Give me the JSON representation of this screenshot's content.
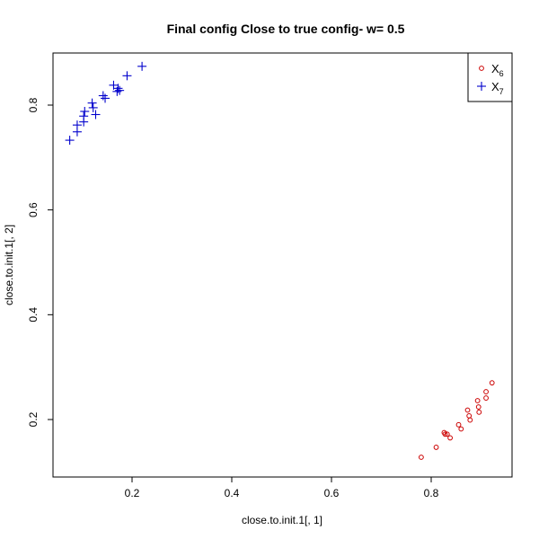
{
  "chart_data": {
    "type": "scatter",
    "title": "Final config Close to true config- w= 0.5",
    "xlabel": "close.to.init.1[, 1]",
    "ylabel": "close.to.init.1[, 2]",
    "xlim": [
      0.05,
      0.95
    ],
    "ylim": [
      0.1,
      0.9
    ],
    "xticks": [
      0.2,
      0.4,
      0.6,
      0.8
    ],
    "yticks": [
      0.2,
      0.4,
      0.6,
      0.8
    ],
    "grid": false,
    "legend_position": "top-right",
    "series": [
      {
        "name": "X",
        "subscript": "6",
        "marker": "circle",
        "color": "#cc0000",
        "points": [
          [
            0.78,
            0.128
          ],
          [
            0.81,
            0.147
          ],
          [
            0.826,
            0.175
          ],
          [
            0.828,
            0.172
          ],
          [
            0.832,
            0.172
          ],
          [
            0.838,
            0.165
          ],
          [
            0.855,
            0.19
          ],
          [
            0.86,
            0.182
          ],
          [
            0.873,
            0.218
          ],
          [
            0.876,
            0.207
          ],
          [
            0.878,
            0.199
          ],
          [
            0.893,
            0.236
          ],
          [
            0.895,
            0.224
          ],
          [
            0.896,
            0.214
          ],
          [
            0.91,
            0.253
          ],
          [
            0.91,
            0.241
          ],
          [
            0.922,
            0.27
          ]
        ]
      },
      {
        "name": "X",
        "subscript": "7",
        "marker": "plus",
        "color": "#0000cc",
        "points": [
          [
            0.075,
            0.733
          ],
          [
            0.09,
            0.749
          ],
          [
            0.09,
            0.762
          ],
          [
            0.103,
            0.768
          ],
          [
            0.103,
            0.779
          ],
          [
            0.105,
            0.788
          ],
          [
            0.12,
            0.804
          ],
          [
            0.122,
            0.795
          ],
          [
            0.127,
            0.782
          ],
          [
            0.142,
            0.818
          ],
          [
            0.146,
            0.813
          ],
          [
            0.163,
            0.838
          ],
          [
            0.17,
            0.826
          ],
          [
            0.172,
            0.832
          ],
          [
            0.175,
            0.828
          ],
          [
            0.19,
            0.856
          ],
          [
            0.22,
            0.874
          ]
        ]
      }
    ]
  }
}
